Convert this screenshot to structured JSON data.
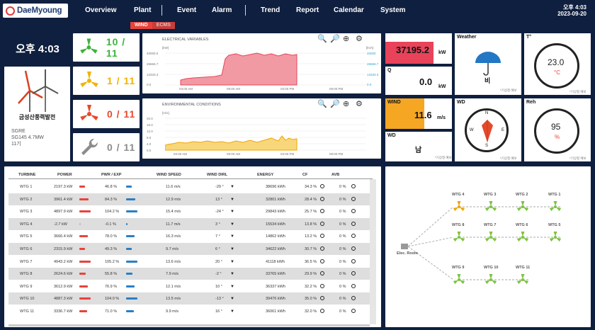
{
  "brand": "DaeMyoung",
  "nav": {
    "items": [
      "Overview",
      "Plant",
      "Event",
      "Alarm",
      "Trend",
      "Report",
      "Calendar",
      "System"
    ]
  },
  "clock": {
    "time": "오후 4:03",
    "date": "2023-09-20"
  },
  "subtabs": [
    "WIND",
    "ECMS"
  ],
  "local_time": "오후 4:03",
  "plant": {
    "name": "금성산풍력발전",
    "model": "SGRE",
    "spec": "SG145 4.7MW",
    "units": "11기"
  },
  "status_counts": [
    {
      "value": "10 / 11",
      "color": "#3bb33b"
    },
    {
      "value": "1 / 11",
      "color": "#f0b400"
    },
    {
      "value": "0 / 11",
      "color": "#e54a2a"
    },
    {
      "value": "0 / 11",
      "color": "#8c8c8c"
    }
  ],
  "charts": {
    "electrical": {
      "title": "ELECTRICAL VARIABLES",
      "y_left": [
        "40000.0",
        "26666.7",
        "13333.3",
        "0.0"
      ],
      "y_right": [
        "40000",
        "26666.7",
        "13333.3",
        "0.0"
      ],
      "left_unit": "[kW]",
      "right_unit": "[kVA]",
      "x": [
        "03:00 AM",
        "09:00 AM",
        "03:00 PM",
        "09:00 PM"
      ]
    },
    "environmental": {
      "title": "ENVIRONMENTAL CONDITIONS",
      "y_left": [
        "20.0",
        "16.0",
        "12.0",
        "8.0",
        "4.0",
        "0.0"
      ],
      "left_unit": "[m/s]",
      "x": [
        "03:00 AM",
        "09:00 AM",
        "03:00 PM",
        "09:00 PM"
      ]
    }
  },
  "kpi": {
    "p": {
      "label": "P",
      "value": "37195.2",
      "unit": "kW"
    },
    "q": {
      "label": "Q",
      "value": "0.0",
      "unit": "kW"
    },
    "wind": {
      "label": "WIND",
      "value": "11.6",
      "unit": "m/s"
    },
    "wd": {
      "label": "WD",
      "value": "남"
    },
    "weather": {
      "label": "Weather",
      "value": "비",
      "note": "*기상청 예보"
    },
    "temp": {
      "label": "T°",
      "value": "23.0",
      "unit": "°C",
      "note": "*기상청 예보"
    },
    "wd_compass": {
      "label": "WD",
      "n": "N",
      "s": "S",
      "e": "E",
      "w": "W",
      "note": "*기상청 예보"
    },
    "reh": {
      "label": "Reh",
      "value": "95",
      "unit": "%",
      "note": "*기상청 예보"
    },
    "wd_note": "*기상청 예보"
  },
  "table": {
    "headers": [
      "TURBINE",
      "POWER",
      "PWR / EXP",
      "WIND SPEED",
      "WIND DIRL",
      "ENERGY",
      "CF",
      "AVB"
    ],
    "rows": [
      {
        "turbine": "WTG 1",
        "power": "2197.3 kW",
        "pwr": "46.8 %",
        "wind": "11.6 m/s",
        "dir": "-29 °",
        "energy": "38696 kWh",
        "cf": "34.3 %",
        "avb": "0 %",
        "p": 0.47,
        "r": 0.47,
        "pc": "#e8433a"
      },
      {
        "turbine": "WTG 2",
        "power": "3961.4 kW",
        "pwr": "84.3 %",
        "wind": "12.9 m/s",
        "dir": "13 °",
        "energy": "32801 kWh",
        "cf": "28.4 %",
        "avb": "0 %",
        "p": 0.84,
        "r": 0.84,
        "pc": "#e8433a"
      },
      {
        "turbine": "WTG 3",
        "power": "4897.9 kW",
        "pwr": "104.2 %",
        "wind": "15.4 m/s",
        "dir": "-24 °",
        "energy": "29843 kWh",
        "cf": "25.7 %",
        "avb": "0 %",
        "p": 1.0,
        "r": 1.0,
        "pc": "#e8433a"
      },
      {
        "turbine": "WTG 4",
        "power": "-2.7 kW",
        "pwr": "-0.1 %",
        "wind": "11.7 m/s",
        "dir": "3 °",
        "energy": "15534 kWh",
        "cf": "13.8 %",
        "avb": "0 %",
        "p": 0.15,
        "r": 0.15,
        "pc": "#bbbbbb"
      },
      {
        "turbine": "WTG 5",
        "power": "3666.4 kW",
        "pwr": "78.0 %",
        "wind": "16.3 m/s",
        "dir": "7 °",
        "energy": "14862 kWh",
        "cf": "13.2 %",
        "avb": "0 %",
        "p": 0.78,
        "r": 0.78,
        "pc": "#e8433a"
      },
      {
        "turbine": "WTG 6",
        "power": "2315.9 kW",
        "pwr": "49.3 %",
        "wind": "9.7 m/s",
        "dir": "6 °",
        "energy": "34622 kWh",
        "cf": "30.7 %",
        "avb": "0 %",
        "p": 0.49,
        "r": 0.49,
        "pc": "#e8433a"
      },
      {
        "turbine": "WTG 7",
        "power": "4943.2 kW",
        "pwr": "105.2 %",
        "wind": "13.6 m/s",
        "dir": "20 °",
        "energy": "41118 kWh",
        "cf": "36.5 %",
        "avb": "0 %",
        "p": 1.0,
        "r": 1.0,
        "pc": "#e8433a"
      },
      {
        "turbine": "WTG 8",
        "power": "2624.6 kW",
        "pwr": "55.8 %",
        "wind": "7.9 m/s",
        "dir": "-2 °",
        "energy": "33765 kWh",
        "cf": "29.9 %",
        "avb": "0 %",
        "p": 0.56,
        "r": 0.56,
        "pc": "#e8433a"
      },
      {
        "turbine": "WTG 9",
        "power": "3612.9 kW",
        "pwr": "76.9 %",
        "wind": "12.1 m/s",
        "dir": "10 °",
        "energy": "36337 kWh",
        "cf": "32.2 %",
        "avb": "0 %",
        "p": 0.77,
        "r": 0.77,
        "pc": "#e8433a"
      },
      {
        "turbine": "WTG 10",
        "power": "4887.3 kW",
        "pwr": "104.0 %",
        "wind": "13.5 m/s",
        "dir": "-13 °",
        "energy": "39476 kWh",
        "cf": "35.0 %",
        "avb": "0 %",
        "p": 1.0,
        "r": 1.0,
        "pc": "#e8433a"
      },
      {
        "turbine": "WTG 11",
        "power": "3336.7 kW",
        "pwr": "71.0 %",
        "wind": "9.9 m/s",
        "dir": "16 °",
        "energy": "36061 kWh",
        "cf": "32.0 %",
        "avb": "0 %",
        "p": 0.71,
        "r": 0.71,
        "pc": "#e8433a"
      }
    ]
  },
  "layout": {
    "room": "Elec. Room",
    "rows": [
      [
        "WTG 4",
        "WTG 3",
        "WTG 2",
        "WTG 1"
      ],
      [
        "WTG 8",
        "WTG 7",
        "WTG 6",
        "WTG 5"
      ],
      [
        "WTG 9",
        "WTG 10",
        "WTG 11"
      ]
    ]
  },
  "colors": {
    "nav": "#0f1f3f",
    "accent": "#e8433a",
    "ok": "#7cc241",
    "warn": "#f0b400",
    "kpi_p": "#e8435a",
    "kpi_wind": "#f5a623"
  }
}
